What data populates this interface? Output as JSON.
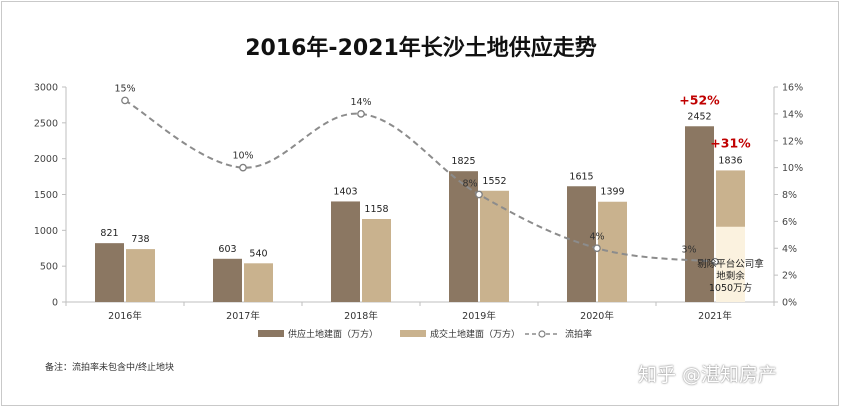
{
  "title": "2016年-2021年长沙土地供应走势",
  "note": "备注：流拍率未包含中/终止地块",
  "watermark": "知乎 @湛知房产",
  "chart_data": {
    "type": "bar",
    "categories": [
      "2016年",
      "2017年",
      "2018年",
      "2019年",
      "2020年",
      "2021年"
    ],
    "series": [
      {
        "name": "供应土地建面（万方）",
        "values": [
          821,
          603,
          1403,
          1825,
          1615,
          2452
        ],
        "color": "#8b7762",
        "axis": "left"
      },
      {
        "name": "成交土地建面（万方）",
        "values": [
          738,
          540,
          1158,
          1552,
          1399,
          1836
        ],
        "color": "#c9b28e",
        "axis": "left"
      },
      {
        "name": "流拍率",
        "type": "line",
        "values": [
          15,
          10,
          14,
          8,
          4,
          3
        ],
        "labels": [
          "15%",
          "10%",
          "14%",
          "8%",
          "4%",
          "3%"
        ],
        "color": "#8c8c8c",
        "axis": "right"
      }
    ],
    "bar_labels": {
      "supply": [
        "821",
        "603",
        "1403",
        "1825",
        "1615",
        "2452"
      ],
      "deal": [
        "738",
        "540",
        "1158",
        "1552",
        "1399",
        "1836"
      ]
    },
    "deal_2021_remaining": 1050,
    "left_axis": {
      "min": 0,
      "max": 3000,
      "ticks": [
        "0",
        "500",
        "1000",
        "1500",
        "2000",
        "2500",
        "3000"
      ]
    },
    "right_axis": {
      "min": 0,
      "max": 16,
      "ticks": [
        "0%",
        "2%",
        "4%",
        "6%",
        "8%",
        "10%",
        "12%",
        "14%",
        "16%"
      ]
    },
    "annotations": {
      "supply_growth": "+52%",
      "deal_growth": "+31%",
      "remaining_note": [
        "剔除平台公司拿",
        "地剩余",
        "1050万方"
      ]
    },
    "legend_position": "bottom",
    "grid": false,
    "colors": {
      "highlight": "#fbf2df",
      "growth": "#c00000"
    }
  }
}
